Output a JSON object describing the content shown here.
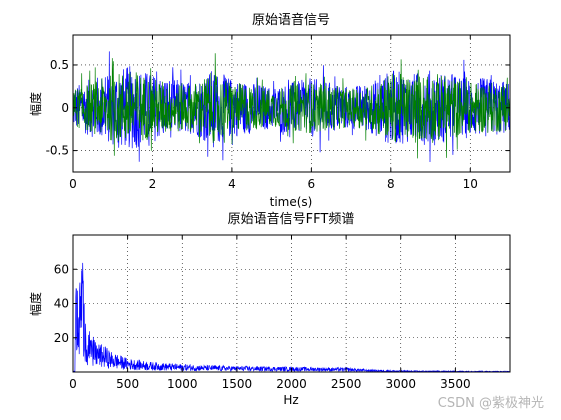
{
  "chart_data": [
    {
      "type": "line",
      "title": "原始语音信号",
      "xlabel": "time(s)",
      "ylabel": "幅度",
      "xlim": [
        0,
        11
      ],
      "ylim": [
        -0.75,
        0.85
      ],
      "xticks": [
        0,
        2,
        4,
        6,
        8,
        10
      ],
      "xtick_labels": [
        "0",
        "2",
        "4",
        "6",
        "8",
        "10"
      ],
      "yticks": [
        -0.5,
        0,
        0.5
      ],
      "ytick_labels": [
        "-0.5",
        "0",
        "0.5"
      ],
      "grid": true,
      "series": [
        {
          "color": "#0000ff",
          "envelope": [
            [
              0,
              0.25
            ],
            [
              0.5,
              0.35
            ],
            [
              1,
              0.45
            ],
            [
              1.5,
              0.5
            ],
            [
              2,
              0.4
            ],
            [
              2.5,
              0.35
            ],
            [
              3,
              0.3
            ],
            [
              3.5,
              0.45
            ],
            [
              4,
              0.35
            ],
            [
              4.5,
              0.3
            ],
            [
              5,
              0.25
            ],
            [
              5.5,
              0.3
            ],
            [
              6,
              0.35
            ],
            [
              6.5,
              0.3
            ],
            [
              7,
              0.25
            ],
            [
              7.5,
              0.3
            ],
            [
              8,
              0.45
            ],
            [
              8.5,
              0.4
            ],
            [
              9,
              0.45
            ],
            [
              9.5,
              0.4
            ],
            [
              10,
              0.35
            ],
            [
              10.5,
              0.35
            ],
            [
              11,
              0.3
            ]
          ]
        },
        {
          "color": "#008000",
          "envelope": [
            [
              0,
              0.22
            ],
            [
              0.5,
              0.3
            ],
            [
              1,
              0.4
            ],
            [
              1.5,
              0.45
            ],
            [
              2,
              0.35
            ],
            [
              2.5,
              0.3
            ],
            [
              3,
              0.28
            ],
            [
              3.5,
              0.42
            ],
            [
              4,
              0.3
            ],
            [
              4.5,
              0.27
            ],
            [
              5,
              0.22
            ],
            [
              5.5,
              0.27
            ],
            [
              6,
              0.3
            ],
            [
              6.5,
              0.27
            ],
            [
              7,
              0.22
            ],
            [
              7.5,
              0.27
            ],
            [
              8,
              0.42
            ],
            [
              8.5,
              0.37
            ],
            [
              9,
              0.42
            ],
            [
              9.5,
              0.37
            ],
            [
              10,
              0.3
            ],
            [
              10.5,
              0.3
            ],
            [
              11,
              0.27
            ]
          ]
        }
      ]
    },
    {
      "type": "line",
      "title": "原始语音信号FFT频谱",
      "xlabel": "Hz",
      "ylabel": "幅度",
      "xlim": [
        0,
        4000
      ],
      "ylim": [
        0,
        80
      ],
      "xticks": [
        0,
        500,
        1000,
        1500,
        2000,
        2500,
        3000,
        3500
      ],
      "xtick_labels": [
        "0",
        "500",
        "1000",
        "1500",
        "2000",
        "2500",
        "3000",
        "3500"
      ],
      "yticks": [
        20,
        40,
        60
      ],
      "ytick_labels": [
        "20",
        "40",
        "60"
      ],
      "grid": true,
      "series": [
        {
          "color": "#0000ff",
          "peaks": [
            [
              20,
              60
            ],
            [
              50,
              40
            ],
            [
              80,
              75
            ],
            [
              100,
              45
            ],
            [
              120,
              25
            ],
            [
              150,
              22
            ],
            [
              200,
              18
            ],
            [
              300,
              15
            ],
            [
              350,
              12
            ],
            [
              500,
              8
            ],
            [
              700,
              6
            ],
            [
              900,
              5
            ],
            [
              1200,
              4
            ],
            [
              1500,
              3.5
            ],
            [
              2000,
              3
            ],
            [
              2500,
              2.5
            ],
            [
              2700,
              1.5
            ],
            [
              3000,
              0.8
            ],
            [
              4000,
              0.5
            ]
          ]
        }
      ]
    }
  ],
  "watermark": "CSDN @紫极神光"
}
